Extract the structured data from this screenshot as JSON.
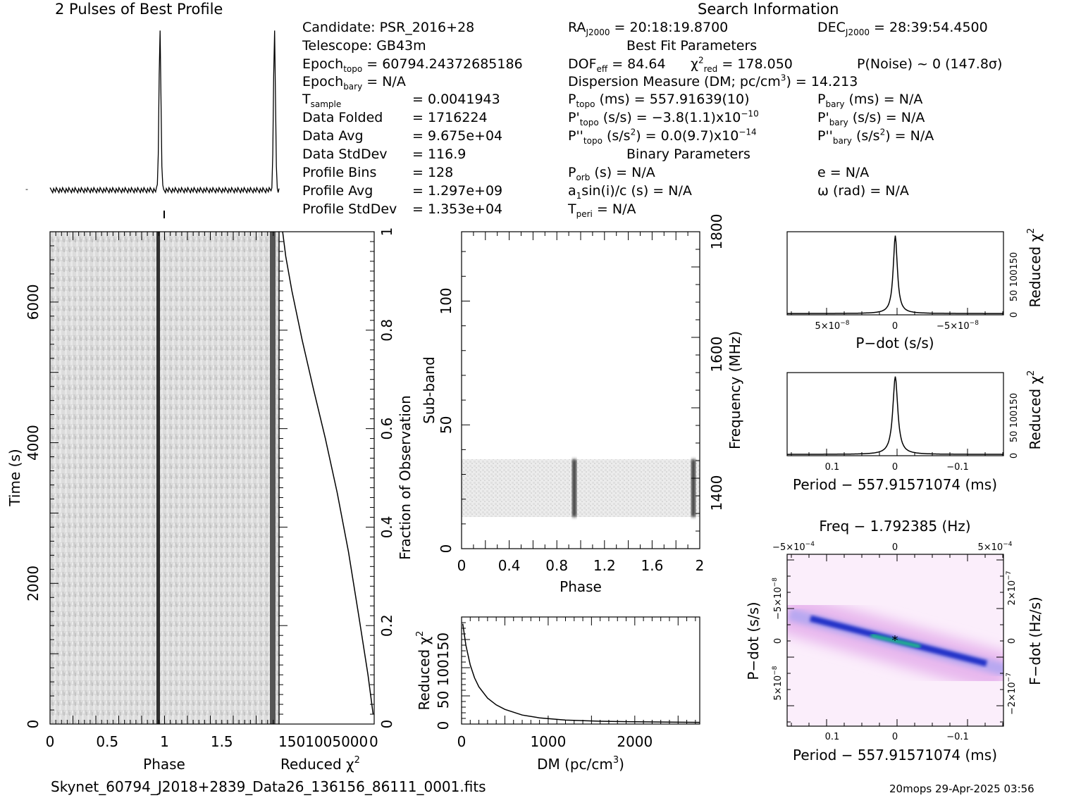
{
  "profile_title": "2 Pulses of Best Profile",
  "search_title": "Search Information",
  "candidate": {
    "candidate": "Candidate:  PSR_2016+28",
    "telescope": "Telescope:  GB43m",
    "epoch_topo_label": "Epoch",
    "epoch_topo_sub": "topo",
    "epoch_topo_value": " = 60794.24372685186",
    "epoch_bary_label": "Epoch",
    "epoch_bary_sub": "bary",
    "epoch_bary_value": " = N/A",
    "tsample_label": "T",
    "tsample_sub": "sample",
    "tsample_value": "=   0.0041943",
    "rows": [
      {
        "label": "Data Folded",
        "value": "=   1716224"
      },
      {
        "label": "Data Avg",
        "value": "=   9.675e+04"
      },
      {
        "label": "Data StdDev",
        "value": "=   116.9"
      },
      {
        "label": "Profile Bins",
        "value": "=   128"
      },
      {
        "label": "Profile Avg",
        "value": "=   1.297e+09"
      },
      {
        "label": "Profile StdDev",
        "value": "=   1.353e+04"
      }
    ]
  },
  "params": {
    "ra_label": "RA",
    "ra_sub": "J2000",
    "ra_value": " = 20:18:19.8700",
    "dec_label": "DEC",
    "dec_sub": "J2000",
    "dec_value": " = 28:39:54.4500",
    "best_fit": "Best Fit Parameters",
    "dof_label": "DOF",
    "dof_sub": "eff",
    "dof_value": " = 84.64",
    "chi_label": "χ",
    "chi_sup": "2",
    "chi_sub": "red",
    "chi_value": " = 178.050",
    "pnoise": "P(Noise) ~ 0   (147.8σ)",
    "dm_label": "Dispersion Measure (DM; pc/cm",
    "dm_sup": "3",
    "dm_value": ") = 14.213",
    "ptopo_label": "P",
    "ptopo_sub": "topo",
    "ptopo_value": " (ms) =  557.91639(10)",
    "pbary_label": "P",
    "pbary_sub": "bary",
    "pbary_value": " (ms) = N/A",
    "pdtopo_label": "P'",
    "pdtopo_sub": "topo",
    "pdtopo_value": " (s/s) = −3.8(1.1)x10",
    "pdtopo_exp": "−10",
    "pdbary_label": "P'",
    "pdbary_sub": "bary",
    "pdbary_value": " (s/s) = N/A",
    "pddtopo_label": "P''",
    "pddtopo_sub": "topo",
    "pddtopo_value": " (s/s",
    "pddtopo_sup": "2",
    "pddtopo_value2": ") = 0.0(9.7)x10",
    "pddtopo_exp": "−14",
    "pddbary_label": "P''",
    "pddbary_sub": "bary",
    "pddbary_value": " (s/s",
    "pddbary_sup": "2",
    "pddbary_value2": ") = N/A",
    "binary": "Binary Parameters",
    "porb_label": "P",
    "porb_sub": "orb",
    "porb_value": " (s) = N/A",
    "ecc": "e = N/A",
    "a1_label": "a",
    "a1_sub": "1",
    "a1_value": "sin(i)/c (s) = N/A",
    "omega": "ω (rad) = N/A",
    "tperi_label": "T",
    "tperi_sub": "peri",
    "tperi_value": " = N/A"
  },
  "footer": {
    "filename": "Skynet_60794_J2018+2839_Data26_136156_86111_0001.fits",
    "stamp": "20mops 29-Apr-2025 03:56"
  },
  "colors": {
    "accent_green": "#1fe07a",
    "dark_blue": "#1010a0",
    "mid_blue": "#4a58e8",
    "light_magenta": "#f0c8f0"
  },
  "chart_data": [
    {
      "type": "line",
      "id": "profile",
      "title": "2 Pulses of Best Profile",
      "xlim": [
        0,
        2
      ],
      "pulse_peaks_phase": [
        0.96,
        1.96
      ],
      "ylim": [
        0,
        1
      ]
    },
    {
      "type": "heatmap",
      "id": "time-phase",
      "xlabel": "Phase",
      "ylabel": "Time (s)",
      "xlim": [
        0,
        2
      ],
      "ylim": [
        0,
        7000
      ],
      "xticks": [
        "0",
        "0.5",
        "1",
        "1.5"
      ],
      "yticks": [
        "0",
        "2000",
        "4000",
        "6000"
      ],
      "pulse_phase": [
        0.96,
        1.96
      ]
    },
    {
      "type": "line",
      "id": "reduced-chi2-vs-time",
      "xlabel": "Reduced χ",
      "xlabel_sup": "2",
      "ylabel": "Fraction of Observation",
      "xticks": [
        "150",
        "100",
        "50",
        "0"
      ],
      "xtick_text": "1501005000",
      "yticks": [
        "0",
        "0.2",
        "0.4",
        "0.6",
        "0.8",
        "1"
      ],
      "x": [
        178,
        172,
        160,
        140,
        118,
        95,
        72,
        50,
        30,
        12,
        2
      ],
      "y": [
        1.0,
        0.95,
        0.88,
        0.78,
        0.68,
        0.58,
        0.47,
        0.35,
        0.22,
        0.1,
        0.02
      ]
    },
    {
      "type": "heatmap",
      "id": "subband-phase",
      "xlabel": "Phase",
      "ylabel": "Sub-band",
      "ylabel_right": "Frequency (MHz)",
      "xlim": [
        0,
        2
      ],
      "ylim": [
        0,
        128
      ],
      "xticks": [
        "0",
        "0.4",
        "0.8",
        "1.2",
        "1.6",
        "2"
      ],
      "yticks": [
        "0",
        "50",
        "100"
      ],
      "freq_ticks": [
        "1400",
        "1600",
        "1800"
      ],
      "signal_subband_range": [
        14,
        36
      ],
      "pulse_phase": [
        0.96,
        1.96
      ]
    },
    {
      "type": "line",
      "id": "dm-curve",
      "xlabel": "DM (pc/cm",
      "xlabel_sup": "3",
      "xlabel_end": ")",
      "ylabel": "Reduced χ",
      "ylabel_sup": "2",
      "xlim": [
        0,
        2750
      ],
      "ylim": [
        0,
        190
      ],
      "xticks": [
        "0",
        "1000",
        "2000"
      ],
      "yticks": [
        "0",
        "50",
        "100",
        "150"
      ],
      "ytick_text": "50 100150",
      "x": [
        14,
        50,
        100,
        150,
        200,
        300,
        400,
        500,
        700,
        900,
        1200,
        1600,
        2000,
        2400,
        2750
      ],
      "y": [
        178,
        140,
        105,
        82,
        66,
        46,
        34,
        26,
        16,
        11,
        7,
        5,
        4,
        3.5,
        3
      ]
    },
    {
      "type": "line",
      "id": "pdot-curve",
      "xlabel": "P−dot (s/s)",
      "ylabel": "Reduced χ",
      "ylabel_sup": "2",
      "xticks": [
        "5×10",
        "0",
        "−5×10"
      ],
      "xtick_exp": "−8",
      "yticks": [
        "0",
        "50",
        "100",
        "150"
      ],
      "ytick_text": "50 100150",
      "peak_value": 178
    },
    {
      "type": "line",
      "id": "period-curve",
      "xlabel": "Period − 557.91571074 (ms)",
      "ylabel": "Reduced χ",
      "ylabel_sup": "2",
      "xticks": [
        "0.1",
        "0",
        "−0.1"
      ],
      "yticks": [
        "0",
        "50",
        "100",
        "150"
      ],
      "ytick_text": "50 100150",
      "peak_value": 178
    },
    {
      "type": "heatmap",
      "id": "pdot-period-plane",
      "title": "Freq − 1.792385 (Hz)",
      "xlabel": "Period − 557.91571074 (ms)",
      "ylabel": "P−dot (s/s)",
      "ylabel_right": "F−dot (Hz/s)",
      "top_xticks": [
        "−5×10",
        "0",
        "5×10"
      ],
      "top_xtick_exp": "−4",
      "xticks": [
        "0.1",
        "0",
        "−0.1"
      ],
      "yticks": [
        "5×10",
        "0",
        "−5×10"
      ],
      "ytick_exp": "−8",
      "right_yticks": [
        "−2×10",
        "0",
        "2×10"
      ],
      "right_ytick_exp": "−7"
    }
  ]
}
